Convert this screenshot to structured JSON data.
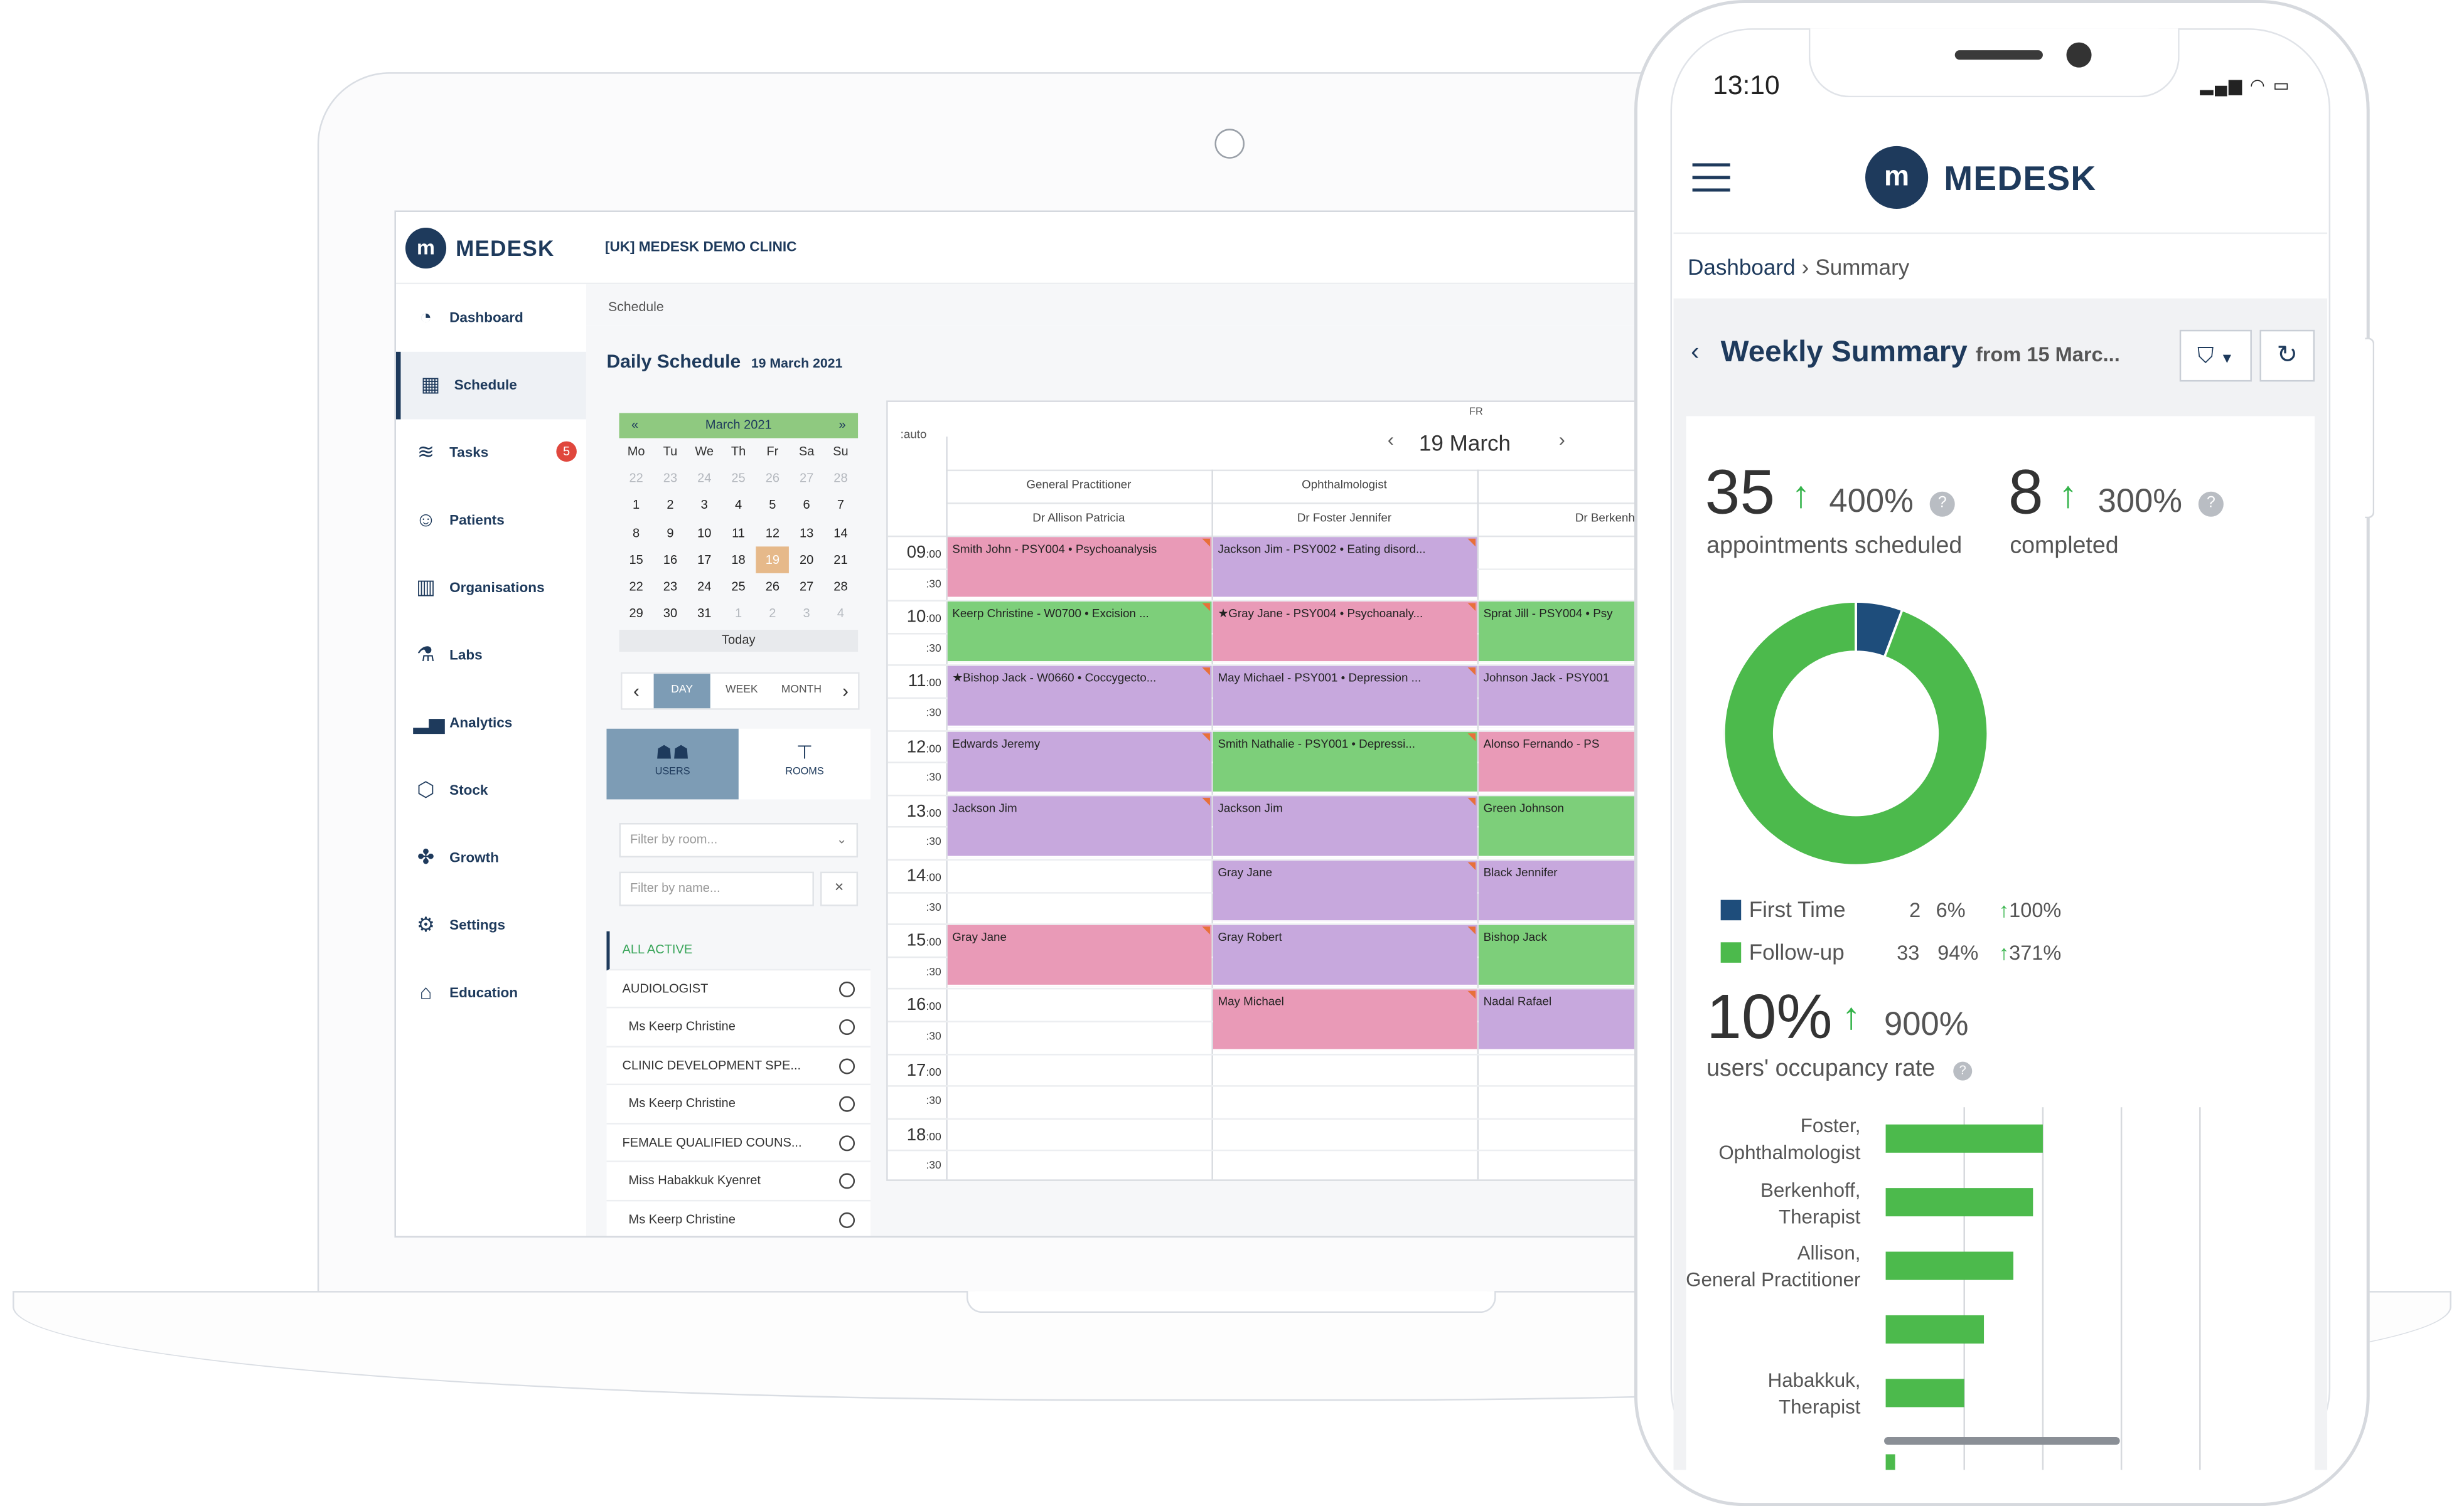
{
  "desktop": {
    "logo_text": "MEDESK",
    "clinic_name": "[UK] MEDESK DEMO CLINIC",
    "nav": [
      {
        "label": "Dashboard",
        "icon": "dashboard-icon"
      },
      {
        "label": "Schedule",
        "icon": "calendar-icon",
        "active": true
      },
      {
        "label": "Tasks",
        "icon": "tasks-icon",
        "badge": "5"
      },
      {
        "label": "Patients",
        "icon": "patients-icon"
      },
      {
        "label": "Organisations",
        "icon": "organisations-icon"
      },
      {
        "label": "Labs",
        "icon": "labs-icon"
      },
      {
        "label": "Analytics",
        "icon": "analytics-icon"
      },
      {
        "label": "Stock",
        "icon": "stock-icon"
      },
      {
        "label": "Growth",
        "icon": "growth-icon"
      },
      {
        "label": "Settings",
        "icon": "settings-icon"
      },
      {
        "label": "Education",
        "icon": "education-icon"
      }
    ],
    "breadcrumb": "Schedule",
    "page_title": "Daily Schedule",
    "page_date": "19 March 2021",
    "mini_calendar": {
      "month": "March 2021",
      "prev": "«",
      "next": "»",
      "dow": [
        "Mo",
        "Tu",
        "We",
        "Th",
        "Fr",
        "Sa",
        "Su"
      ],
      "weeks": [
        [
          "22",
          "23",
          "24",
          "25",
          "26",
          "27",
          "28"
        ],
        [
          "1",
          "2",
          "3",
          "4",
          "5",
          "6",
          "7"
        ],
        [
          "8",
          "9",
          "10",
          "11",
          "12",
          "13",
          "14"
        ],
        [
          "15",
          "16",
          "17",
          "18",
          "19",
          "20",
          "21"
        ],
        [
          "22",
          "23",
          "24",
          "25",
          "26",
          "27",
          "28"
        ],
        [
          "29",
          "30",
          "31",
          "1",
          "2",
          "3",
          "4"
        ]
      ],
      "today_label": "Today"
    },
    "view_switch": {
      "day": "DAY",
      "week": "WEEK",
      "month": "MONTH"
    },
    "tabs": {
      "users": "USERS",
      "rooms": "ROOMS"
    },
    "filter_room_placeholder": "Filter by room...",
    "filter_name_placeholder": "Filter by name...",
    "resources": [
      {
        "label": "ALL ACTIVE",
        "type": "all"
      },
      {
        "label": "AUDIOLOGIST",
        "type": "group"
      },
      {
        "label": "Ms Keerp Christine",
        "type": "person"
      },
      {
        "label": "CLINIC DEVELOPMENT SPE...",
        "type": "group"
      },
      {
        "label": "Ms Keerp Christine",
        "type": "person"
      },
      {
        "label": "FEMALE QUALIFIED COUNS...",
        "type": "group"
      },
      {
        "label": "Miss Habakkuk Kyenret",
        "type": "person"
      },
      {
        "label": "Ms Keerp Christine",
        "type": "person"
      }
    ],
    "schedule": {
      "auto_label": ":auto",
      "day_abbr": "FR",
      "day_label": "19 March",
      "columns": [
        {
          "specialty": "General Practitioner",
          "doctor": "Dr Allison Patricia"
        },
        {
          "specialty": "Ophthalmologist",
          "doctor": "Dr Foster Jennifer"
        },
        {
          "specialty": "",
          "doctor": "Dr Berkenhof"
        }
      ],
      "hours": [
        "09",
        "10",
        "11",
        "12",
        "13",
        "14",
        "15",
        "16",
        "17",
        "18"
      ],
      "minute_00": ":00",
      "minute_30": ":30",
      "appointments": [
        {
          "col": 0,
          "hour": 9,
          "text": "Smith John - PSY004 • Psychoanalysis",
          "color": "pink"
        },
        {
          "col": 1,
          "hour": 9,
          "text": "Jackson Jim - PSY002 • Eating disord...",
          "color": "purple"
        },
        {
          "col": 0,
          "hour": 10,
          "text": "Keerp Christine - W0700 • Excision ...",
          "color": "green"
        },
        {
          "col": 1,
          "hour": 10,
          "text": "★Gray Jane - PSY004 • Psychoanaly...",
          "color": "pink"
        },
        {
          "col": 2,
          "hour": 10,
          "text": "Sprat Jill - PSY004 • Psy",
          "color": "green"
        },
        {
          "col": 0,
          "hour": 11,
          "text": "★Bishop Jack - W0660 • Coccygecto...",
          "color": "purple"
        },
        {
          "col": 1,
          "hour": 11,
          "text": "May Michael - PSY001 • Depression ...",
          "color": "purple"
        },
        {
          "col": 2,
          "hour": 11,
          "text": "Johnson Jack - PSY001",
          "color": "purple"
        },
        {
          "col": 0,
          "hour": 12,
          "text": "Edwards Jeremy",
          "color": "purple"
        },
        {
          "col": 1,
          "hour": 12,
          "text": "Smith Nathalie - PSY001 • Depressi...",
          "color": "green"
        },
        {
          "col": 2,
          "hour": 12,
          "text": "Alonso Fernando - PS",
          "color": "pink"
        },
        {
          "col": 0,
          "hour": 13,
          "text": "Jackson Jim",
          "color": "purple"
        },
        {
          "col": 1,
          "hour": 13,
          "text": "Jackson Jim",
          "color": "purple"
        },
        {
          "col": 2,
          "hour": 13,
          "text": "Green Johnson",
          "color": "green"
        },
        {
          "col": 1,
          "hour": 14,
          "text": "Gray Jane",
          "color": "purple"
        },
        {
          "col": 2,
          "hour": 14,
          "text": "Black Jennifer",
          "color": "purple"
        },
        {
          "col": 0,
          "hour": 15,
          "text": "Gray Jane",
          "color": "pink"
        },
        {
          "col": 1,
          "hour": 15,
          "text": "Gray Robert",
          "color": "purple"
        },
        {
          "col": 2,
          "hour": 15,
          "text": "Bishop Jack",
          "color": "green"
        },
        {
          "col": 1,
          "hour": 16,
          "text": "May Michael",
          "color": "pink"
        },
        {
          "col": 2,
          "hour": 16,
          "text": "Nadal Rafael",
          "color": "purple"
        }
      ]
    }
  },
  "mobile": {
    "status_time": "13:10",
    "logo_text": "MEDESK",
    "breadcrumb": {
      "parent": "Dashboard",
      "current": "Summary"
    },
    "title": "Weekly Summary",
    "title_suffix": "from 15 Marc...",
    "stats": {
      "scheduled_value": "35",
      "scheduled_change": "400%",
      "scheduled_label": "appointments scheduled",
      "completed_value": "8",
      "completed_change": "300%",
      "completed_label": "completed",
      "occupancy_value": "10%",
      "occupancy_change": "900%",
      "occupancy_label": "users' occupancy rate"
    },
    "legend": [
      {
        "label": "First Time",
        "count": "2",
        "share": "6%",
        "change": "100%",
        "color": "#1e4d7b"
      },
      {
        "label": "Follow-up",
        "count": "33",
        "share": "94%",
        "change": "371%",
        "color": "#4cba4c"
      }
    ],
    "colors": {
      "accent": "#1e3a5c",
      "positive": "#34b34a"
    }
  },
  "chart_data": [
    {
      "type": "pie",
      "variant": "donut",
      "categories": [
        "First Time",
        "Follow-up"
      ],
      "values": [
        2,
        33
      ],
      "colors": [
        "#1e4d7b",
        "#4cba4c"
      ]
    },
    {
      "type": "bar",
      "orientation": "horizontal",
      "categories": [
        "Foster, Ophthalmologist",
        "Berkenhoff, Therapist",
        "Allison, General Practitioner",
        "",
        "Habakkuk, Therapist"
      ],
      "values": [
        16,
        15,
        13,
        10,
        8
      ],
      "xlim": [
        0,
        80
      ],
      "grid": true,
      "color": "#4cba4c"
    }
  ]
}
